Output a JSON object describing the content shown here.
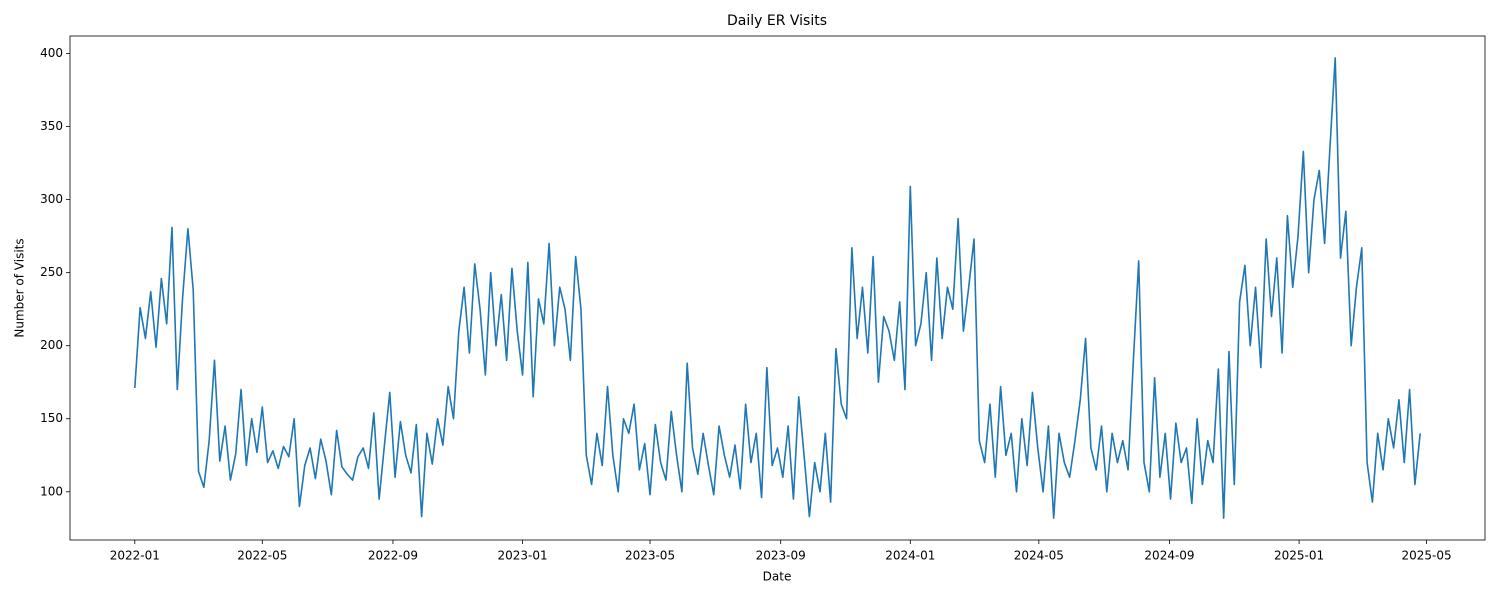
{
  "chart_data": {
    "type": "line",
    "title": "Daily ER Visits",
    "x_label": "Date",
    "y_label": "Number of Visits",
    "color": "#1f77b4",
    "xlim": [
      -61,
      1271
    ],
    "xticks": [
      {
        "value": 0,
        "label": "2022-01"
      },
      {
        "value": 120,
        "label": "2022-05"
      },
      {
        "value": 243,
        "label": "2022-09"
      },
      {
        "value": 365,
        "label": "2023-01"
      },
      {
        "value": 485,
        "label": "2023-05"
      },
      {
        "value": 608,
        "label": "2023-09"
      },
      {
        "value": 730,
        "label": "2024-01"
      },
      {
        "value": 851,
        "label": "2024-05"
      },
      {
        "value": 974,
        "label": "2024-09"
      },
      {
        "value": 1096,
        "label": "2025-01"
      },
      {
        "value": 1216,
        "label": "2025-05"
      }
    ],
    "ylim": [
      67,
      412
    ],
    "yticks": [
      100,
      150,
      200,
      250,
      300,
      350,
      400
    ],
    "x": [
      0,
      5,
      10,
      15,
      20,
      25,
      30,
      35,
      40,
      45,
      50,
      55,
      60,
      65,
      70,
      75,
      80,
      85,
      90,
      95,
      100,
      105,
      110,
      115,
      120,
      125,
      130,
      135,
      140,
      145,
      150,
      155,
      160,
      165,
      170,
      175,
      180,
      185,
      190,
      195,
      200,
      205,
      210,
      215,
      220,
      225,
      230,
      235,
      240,
      245,
      250,
      255,
      260,
      265,
      270,
      275,
      280,
      285,
      290,
      295,
      300,
      305,
      310,
      315,
      320,
      325,
      330,
      335,
      340,
      345,
      350,
      355,
      360,
      365,
      370,
      375,
      380,
      385,
      390,
      395,
      400,
      405,
      410,
      415,
      420,
      425,
      430,
      435,
      440,
      445,
      450,
      455,
      460,
      465,
      470,
      475,
      480,
      485,
      490,
      495,
      500,
      505,
      510,
      515,
      520,
      525,
      530,
      535,
      540,
      545,
      550,
      555,
      560,
      565,
      570,
      575,
      580,
      585,
      590,
      595,
      600,
      605,
      610,
      615,
      620,
      625,
      630,
      635,
      640,
      645,
      650,
      655,
      660,
      665,
      670,
      675,
      680,
      685,
      690,
      695,
      700,
      705,
      710,
      715,
      720,
      725,
      730,
      735,
      740,
      745,
      750,
      755,
      760,
      765,
      770,
      775,
      780,
      785,
      790,
      795,
      800,
      805,
      810,
      815,
      820,
      825,
      830,
      835,
      840,
      845,
      850,
      855,
      860,
      865,
      870,
      875,
      880,
      885,
      890,
      895,
      900,
      905,
      910,
      915,
      920,
      925,
      930,
      935,
      940,
      945,
      950,
      955,
      960,
      965,
      970,
      975,
      980,
      985,
      990,
      995,
      1000,
      1005,
      1010,
      1015,
      1020,
      1025,
      1030,
      1035,
      1040,
      1045,
      1050,
      1055,
      1060,
      1065,
      1070,
      1075,
      1080,
      1085,
      1090,
      1095,
      1100,
      1105,
      1110,
      1115,
      1120,
      1125,
      1130,
      1135,
      1140,
      1145,
      1150,
      1155,
      1160,
      1165,
      1170,
      1175,
      1180,
      1185,
      1190,
      1195,
      1200,
      1205,
      1210
    ],
    "values": [
      171,
      226,
      205,
      237,
      199,
      246,
      215,
      281,
      170,
      233,
      280,
      238,
      114,
      103,
      135,
      190,
      121,
      145,
      108,
      126,
      170,
      118,
      150,
      127,
      158,
      120,
      128,
      116,
      131,
      124,
      150,
      90,
      118,
      130,
      109,
      136,
      121,
      98,
      142,
      117,
      112,
      108,
      124,
      130,
      116,
      154,
      95,
      132,
      168,
      110,
      148,
      125,
      113,
      146,
      83,
      140,
      119,
      150,
      132,
      172,
      150,
      210,
      240,
      195,
      256,
      225,
      180,
      250,
      200,
      235,
      190,
      253,
      210,
      180,
      257,
      165,
      232,
      215,
      270,
      200,
      240,
      225,
      190,
      261,
      225,
      125,
      105,
      140,
      118,
      172,
      125,
      100,
      150,
      140,
      160,
      115,
      133,
      98,
      146,
      120,
      108,
      155,
      125,
      100,
      188,
      130,
      112,
      140,
      118,
      98,
      145,
      125,
      110,
      132,
      102,
      160,
      120,
      140,
      96,
      185,
      118,
      130,
      110,
      145,
      95,
      165,
      125,
      83,
      120,
      100,
      140,
      93,
      198,
      160,
      150,
      267,
      205,
      240,
      195,
      261,
      175,
      220,
      210,
      190,
      230,
      170,
      309,
      200,
      215,
      250,
      190,
      260,
      205,
      240,
      225,
      287,
      210,
      240,
      273,
      135,
      120,
      160,
      110,
      172,
      125,
      140,
      100,
      150,
      118,
      168,
      130,
      100,
      145,
      82,
      140,
      120,
      110,
      135,
      163,
      205,
      130,
      115,
      145,
      100,
      140,
      120,
      135,
      115,
      190,
      258,
      120,
      100,
      178,
      110,
      140,
      95,
      147,
      120,
      130,
      92,
      150,
      105,
      135,
      120,
      184,
      82,
      196,
      105,
      230,
      255,
      200,
      240,
      185,
      273,
      220,
      260,
      195,
      289,
      240,
      275,
      333,
      250,
      300,
      320,
      270,
      335,
      397,
      260,
      292,
      200,
      240,
      267,
      120,
      93,
      140,
      115,
      150,
      130,
      163,
      120,
      170,
      105,
      140
    ]
  }
}
